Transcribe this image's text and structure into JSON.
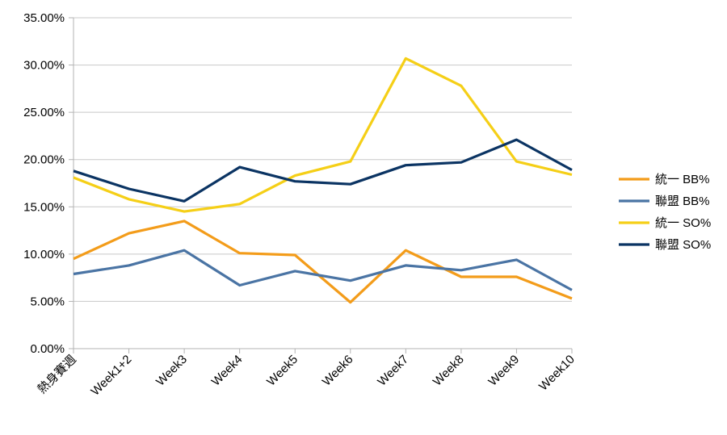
{
  "chart_data": {
    "type": "line",
    "title": "",
    "xlabel": "",
    "ylabel": "",
    "categories": [
      "熱身賽週",
      "Week1+2",
      "Week3",
      "Week4",
      "Week5",
      "Week6",
      "Week7",
      "Week8",
      "Week9",
      "Week10"
    ],
    "ylim": [
      0,
      35
    ],
    "yticks": [
      0,
      5,
      10,
      15,
      20,
      25,
      30,
      35
    ],
    "ytick_labels": [
      "0.00%",
      "5.00%",
      "10.00%",
      "15.00%",
      "20.00%",
      "25.00%",
      "30.00%",
      "35.00%"
    ],
    "grid": true,
    "legend_position": "right",
    "series": [
      {
        "name": "統一 BB%",
        "color": "#f39c1a",
        "values": [
          9.5,
          12.2,
          13.5,
          10.1,
          9.9,
          4.9,
          10.4,
          7.6,
          7.6,
          5.3
        ]
      },
      {
        "name": "聯盟 BB%",
        "color": "#4a74a4",
        "values": [
          7.9,
          8.8,
          10.4,
          6.7,
          8.2,
          7.2,
          8.8,
          8.3,
          9.4,
          6.2
        ]
      },
      {
        "name": "統一 SO%",
        "color": "#f5cf17",
        "values": [
          18.1,
          15.8,
          14.5,
          15.3,
          18.3,
          19.8,
          30.7,
          27.8,
          19.8,
          18.4
        ]
      },
      {
        "name": "聯盟 SO%",
        "color": "#0b3463",
        "values": [
          18.8,
          16.9,
          15.6,
          19.2,
          17.7,
          17.4,
          19.4,
          19.7,
          22.1,
          18.9
        ]
      }
    ]
  }
}
